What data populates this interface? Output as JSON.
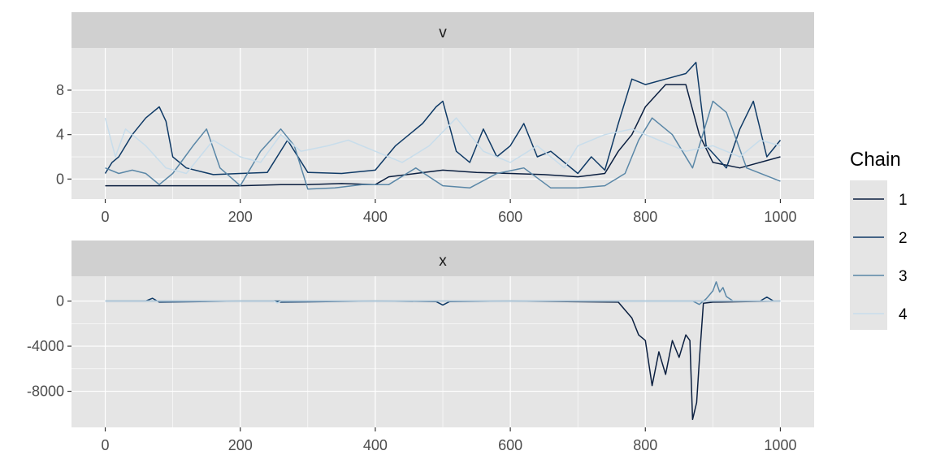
{
  "colors": {
    "panel_bg": "#E5E5E5",
    "strip_bg": "#D0D0D0",
    "grid": "#FFFFFF",
    "tick": "#333333"
  },
  "legend": {
    "title": "Chain",
    "items": [
      {
        "label": "1",
        "color": "#0B1F40"
      },
      {
        "label": "2",
        "color": "#0F3A66"
      },
      {
        "label": "3",
        "color": "#5A87A7"
      },
      {
        "label": "4",
        "color": "#C8DDEB"
      }
    ]
  },
  "chart_data": [
    {
      "type": "line",
      "facet": "v",
      "xlim": [
        -50,
        1050
      ],
      "ylim": [
        -1.8,
        11.8
      ],
      "x_ticks": [
        0,
        200,
        400,
        600,
        800,
        1000
      ],
      "x_tick_labels": [
        "0",
        "200",
        "400",
        "600",
        "800",
        "1000"
      ],
      "y_ticks": [
        0,
        4,
        8
      ],
      "y_tick_labels": [
        "0",
        "4",
        "8"
      ],
      "series": [
        {
          "name": "1",
          "x": [
            0,
            100,
            200,
            260,
            300,
            350,
            400,
            420,
            460,
            500,
            550,
            600,
            650,
            700,
            740,
            760,
            780,
            800,
            830,
            860,
            880,
            900,
            940,
            1000
          ],
          "values": [
            -0.6,
            -0.6,
            -0.6,
            -0.5,
            -0.5,
            -0.4,
            -0.5,
            0.2,
            0.5,
            0.8,
            0.6,
            0.5,
            0.4,
            0.2,
            0.5,
            2.5,
            4,
            6.5,
            8.5,
            8.5,
            4,
            1.5,
            1,
            2
          ]
        },
        {
          "name": "2",
          "x": [
            0,
            10,
            20,
            40,
            60,
            70,
            80,
            90,
            100,
            120,
            160,
            200,
            240,
            270,
            300,
            350,
            400,
            430,
            450,
            470,
            490,
            500,
            520,
            540,
            560,
            580,
            600,
            620,
            640,
            660,
            700,
            720,
            740,
            760,
            780,
            800,
            830,
            860,
            875,
            890,
            920,
            940,
            960,
            980,
            1000
          ],
          "values": [
            0.5,
            1.5,
            2,
            4,
            5.5,
            6,
            6.5,
            5.2,
            2,
            1,
            0.4,
            0.5,
            0.6,
            3.5,
            0.6,
            0.5,
            0.8,
            3,
            4,
            5,
            6.5,
            7,
            2.5,
            1.5,
            4.5,
            2,
            3,
            5,
            2,
            2.5,
            0.5,
            2,
            0.8,
            5,
            9,
            8.5,
            9,
            9.5,
            10.5,
            3,
            1,
            4.5,
            7,
            2,
            3.5
          ]
        },
        {
          "name": "3",
          "x": [
            0,
            20,
            40,
            60,
            80,
            100,
            130,
            150,
            170,
            200,
            230,
            260,
            280,
            300,
            340,
            380,
            420,
            460,
            500,
            540,
            580,
            620,
            660,
            700,
            740,
            770,
            790,
            810,
            840,
            870,
            900,
            920,
            950,
            1000
          ],
          "values": [
            1,
            0.5,
            0.8,
            0.5,
            -0.5,
            0.5,
            3,
            4.5,
            1,
            -0.6,
            2.5,
            4.5,
            3,
            -0.9,
            -0.8,
            -0.5,
            -0.5,
            1,
            -0.6,
            -0.8,
            0.5,
            1,
            -0.8,
            -0.8,
            -0.6,
            0.5,
            3.5,
            5.5,
            4,
            1,
            7,
            6,
            1,
            -0.2
          ]
        },
        {
          "name": "4",
          "x": [
            0,
            15,
            30,
            60,
            90,
            120,
            160,
            200,
            230,
            260,
            290,
            330,
            360,
            400,
            440,
            480,
            520,
            560,
            600,
            640,
            680,
            700,
            740,
            780,
            820,
            860,
            900,
            940,
            970,
            1000
          ],
          "values": [
            5.5,
            2,
            4.5,
            3,
            1,
            0.5,
            3.5,
            2,
            1.5,
            4,
            2.5,
            3,
            3.5,
            2.5,
            1.5,
            3,
            5.5,
            2.5,
            1.5,
            3,
            1,
            3,
            4,
            4.5,
            3.5,
            2.5,
            3,
            2,
            3.5,
            3
          ]
        }
      ]
    },
    {
      "type": "line",
      "facet": "x",
      "xlim": [
        -50,
        1050
      ],
      "ylim": [
        -11200,
        2200
      ],
      "x_ticks": [
        0,
        200,
        400,
        600,
        800,
        1000
      ],
      "x_tick_labels": [
        "0",
        "200",
        "400",
        "600",
        "800",
        "1000"
      ],
      "y_ticks": [
        0,
        -4000,
        -8000
      ],
      "y_tick_labels": [
        "0",
        "-4000",
        "-8000"
      ],
      "series": [
        {
          "name": "1",
          "x": [
            0,
            200,
            400,
            600,
            760,
            780,
            790,
            800,
            810,
            820,
            830,
            840,
            850,
            860,
            866,
            870,
            876,
            880,
            886,
            900,
            1000
          ],
          "values": [
            0,
            0,
            0,
            0,
            -100,
            -1500,
            -3000,
            -3500,
            -7500,
            -4500,
            -6500,
            -3500,
            -5000,
            -3000,
            -3500,
            -10500,
            -9000,
            -5300,
            -200,
            -100,
            0
          ]
        },
        {
          "name": "2",
          "x": [
            0,
            60,
            70,
            80,
            200,
            250,
            260,
            400,
            490,
            500,
            510,
            600,
            900,
            970,
            980,
            990,
            1000
          ],
          "values": [
            0,
            0,
            250,
            -100,
            0,
            0,
            -100,
            0,
            -50,
            -350,
            -50,
            0,
            0,
            0,
            350,
            0,
            0
          ]
        },
        {
          "name": "3",
          "x": [
            0,
            200,
            500,
            870,
            880,
            890,
            900,
            905,
            910,
            915,
            920,
            930,
            1000
          ],
          "values": [
            0,
            0,
            0,
            0,
            -300,
            200,
            900,
            1700,
            800,
            1200,
            400,
            0,
            0
          ]
        },
        {
          "name": "4",
          "x": [
            0,
            250,
            255,
            260,
            500,
            1000
          ],
          "values": [
            0,
            0,
            -200,
            0,
            0,
            0
          ]
        }
      ]
    }
  ]
}
